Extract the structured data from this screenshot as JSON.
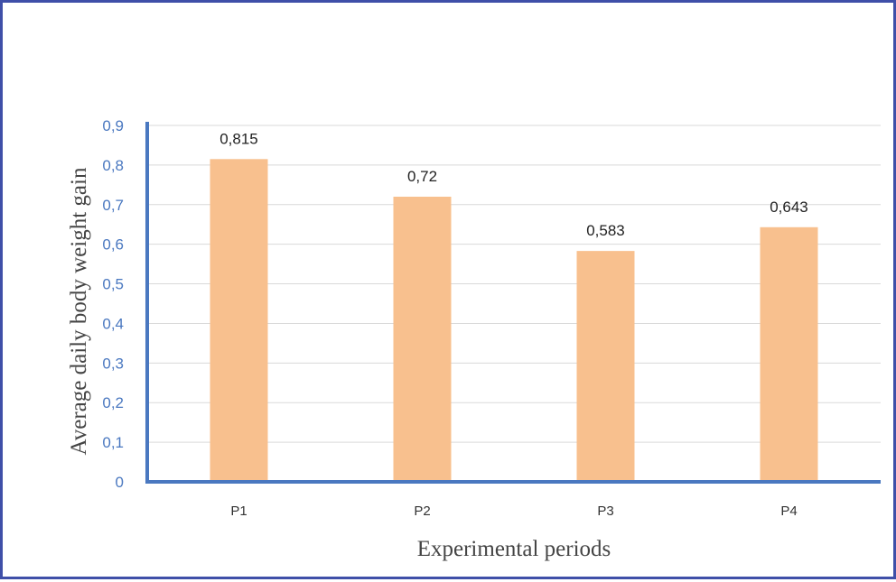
{
  "chart_data": {
    "type": "bar",
    "title": "",
    "xlabel": "Experimental periods",
    "ylabel": "Average daily body weight gain",
    "categories": [
      "P1",
      "P2",
      "P3",
      "P4"
    ],
    "values": [
      0.815,
      0.72,
      0.583,
      0.643
    ],
    "data_labels": [
      "0,815",
      "0,72",
      "0,583",
      "0,643"
    ],
    "yticks": [
      0,
      0.1,
      0.2,
      0.3,
      0.4,
      0.5,
      0.6,
      0.7,
      0.8,
      0.9
    ],
    "ytick_labels": [
      "0",
      "0,1",
      "0,2",
      "0,3",
      "0,4",
      "0,5",
      "0,6",
      "0,7",
      "0,8",
      "0,9"
    ],
    "ylim": [
      0,
      0.9
    ],
    "grid": true,
    "legend": "none",
    "colors": {
      "bar": "#f8c08e",
      "axis": "#4a78c0",
      "grid": "#d9d9d9",
      "border": "#3f4fa8"
    }
  }
}
